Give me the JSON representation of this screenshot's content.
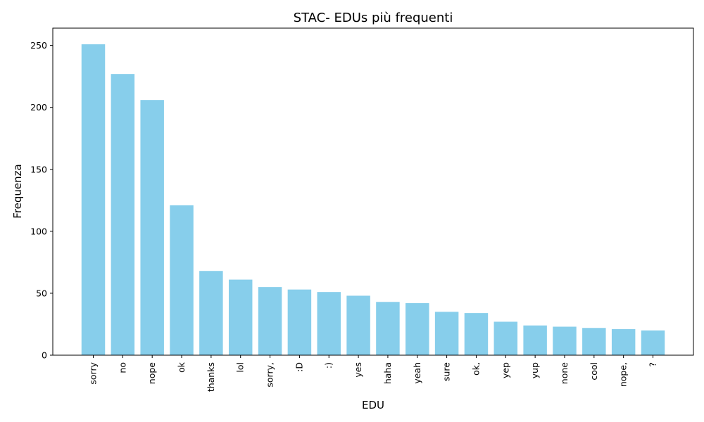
{
  "chart_data": {
    "type": "bar",
    "title": "STAC- EDUs più frequenti",
    "xlabel": "EDU",
    "ylabel": "Frequenza",
    "categories": [
      "sorry",
      "no",
      "nope",
      "ok",
      "thanks",
      "lol",
      "sorry,",
      ":D",
      ":)",
      "yes",
      "haha",
      "yeah",
      "sure",
      "ok,",
      "yep",
      "yup",
      "none",
      "cool",
      "nope,",
      "?"
    ],
    "values": [
      251,
      227,
      206,
      121,
      68,
      61,
      55,
      53,
      51,
      48,
      43,
      42,
      35,
      34,
      27,
      24,
      23,
      22,
      21,
      20
    ],
    "ylim": [
      0,
      264
    ],
    "yticks": [
      0,
      50,
      100,
      150,
      200,
      250
    ],
    "bar_color": "#87ceeb",
    "grid": false,
    "legend": false
  }
}
